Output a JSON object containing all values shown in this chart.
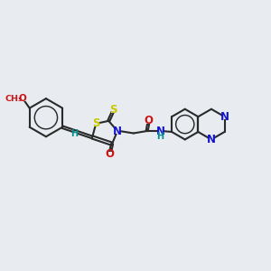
{
  "bg_color": "#e8ecf0",
  "bond_color": "#2a2a2a",
  "bond_width": 1.5,
  "S_color": "#c8c800",
  "N_color": "#1414cc",
  "O_color": "#cc1414",
  "H_color": "#009090",
  "font_size": 8.5,
  "font_size_small": 7.0,
  "xlim": [
    0,
    12
  ],
  "ylim": [
    0,
    10
  ],
  "fig_w": 3.0,
  "fig_h": 3.0,
  "dpi": 100
}
